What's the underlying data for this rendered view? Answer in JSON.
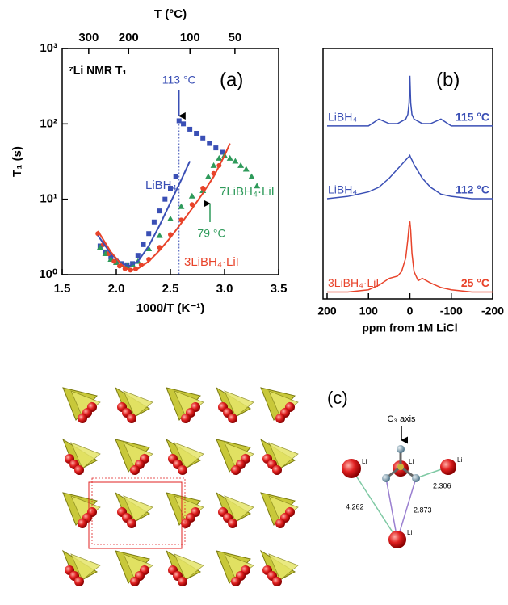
{
  "chart_data": [
    {
      "type": "scatter",
      "panel_label": "(a)",
      "title": "⁷Li NMR T₁",
      "xlabel": "1000/T (K⁻¹)",
      "ylabel": "T₁ (s)",
      "x2label": "T (°C)",
      "xlim": [
        1.5,
        3.5
      ],
      "xticks": [
        1.5,
        {
          "value": 2,
          "label": "2.0"
        },
        2.5,
        {
          "value": 3,
          "label": "3.0"
        },
        3.5
      ],
      "x2ticks": [
        {
          "value": 1.745,
          "label": "300"
        },
        {
          "value": 2.114,
          "label": "200"
        },
        {
          "value": 2.681,
          "label": "100"
        },
        {
          "value": 3.096,
          "label": "50"
        }
      ],
      "ylim": [
        1,
        1000
      ],
      "yscale": "log",
      "yticks": [
        {
          "value": 1,
          "label": "10⁰"
        },
        {
          "value": 10,
          "label": "10¹"
        },
        {
          "value": 100,
          "label": "10²"
        },
        {
          "value": 1000,
          "label": "10³"
        }
      ],
      "series": [
        {
          "name": "LiBH₄",
          "color": "#3a4fb5",
          "marker": "square",
          "x": [
            1.85,
            1.9,
            1.95,
            2.0,
            2.05,
            2.1,
            2.15,
            2.2,
            2.25,
            2.3,
            2.35,
            2.4,
            2.45,
            2.5,
            2.55,
            2.58,
            2.62,
            2.68,
            2.74,
            2.8,
            2.86,
            2.92,
            2.98
          ],
          "values": [
            2.4,
            2.0,
            1.7,
            1.5,
            1.4,
            1.35,
            1.4,
            1.8,
            2.5,
            3.5,
            5,
            7,
            10,
            14,
            20,
            110,
            100,
            85,
            75,
            65,
            55,
            48,
            42
          ]
        },
        {
          "name": "7LiBH₄·LiI",
          "color": "#2e9a5a",
          "marker": "triangle",
          "x": [
            1.85,
            1.9,
            1.95,
            2.0,
            2.05,
            2.1,
            2.15,
            2.2,
            2.3,
            2.4,
            2.5,
            2.6,
            2.7,
            2.8,
            2.85,
            2.9,
            2.95,
            3.0,
            3.05,
            3.1,
            3.15,
            3.2,
            3.25,
            3.3
          ],
          "values": [
            2.3,
            1.9,
            1.6,
            1.45,
            1.35,
            1.3,
            1.35,
            1.5,
            2.2,
            3.3,
            5.5,
            8,
            11,
            13,
            20,
            28,
            35,
            38,
            35,
            32,
            28,
            25,
            20,
            15
          ]
        },
        {
          "name": "3LiBH₄·LiI",
          "color": "#e8432a",
          "marker": "circle",
          "x": [
            1.83,
            1.88,
            1.93,
            1.98,
            2.03,
            2.08,
            2.13,
            2.18,
            2.23,
            2.3,
            2.4,
            2.5,
            2.6,
            2.7,
            2.8,
            2.9,
            2.95
          ],
          "values": [
            3.5,
            2.5,
            1.9,
            1.5,
            1.3,
            1.2,
            1.15,
            1.2,
            1.35,
            1.6,
            2.3,
            3.4,
            5.3,
            8.5,
            14,
            22,
            28
          ]
        },
        {
          "color": "#3a4fb5",
          "marker": "line",
          "x": [
            1.83,
            1.95,
            2.05,
            2.12,
            2.2,
            2.3,
            2.4,
            2.5,
            2.6,
            2.68
          ],
          "values": [
            3.3,
            1.9,
            1.4,
            1.3,
            1.5,
            2.4,
            4.5,
            9,
            18,
            32
          ]
        },
        {
          "color": "#e8432a",
          "marker": "line",
          "x": [
            1.83,
            1.95,
            2.05,
            2.12,
            2.2,
            2.3,
            2.4,
            2.5,
            2.6,
            2.7,
            2.8,
            2.9,
            3.0,
            3.05
          ],
          "values": [
            3.8,
            2.0,
            1.35,
            1.15,
            1.2,
            1.5,
            2.1,
            3.1,
            4.8,
            7.5,
            12,
            20,
            38,
            55
          ]
        }
      ],
      "annotations": [
        "113 °C",
        "79 °C"
      ]
    },
    {
      "type": "line",
      "panel_label": "(b)",
      "xlabel": "ppm from 1M LiCl",
      "xlim": [
        200,
        -200
      ],
      "xticks": [
        200,
        100,
        0,
        -100,
        -200
      ],
      "ylim": [
        0,
        11
      ],
      "x": [
        200,
        150,
        100,
        75,
        50,
        30,
        20,
        10,
        5,
        2,
        0,
        -2,
        -5,
        -10,
        -20,
        -30,
        -50,
        -75,
        -100,
        -150,
        -200
      ],
      "series": [
        {
          "name": "LiBH₄",
          "temperature": "115 °C",
          "color": "#3a4fb5",
          "values": [
            7.6,
            7.6,
            7.6,
            7.9,
            7.7,
            7.7,
            7.8,
            7.9,
            8.1,
            8.6,
            9.8,
            8.6,
            8.1,
            7.9,
            7.8,
            7.7,
            7.7,
            7.9,
            7.6,
            7.6,
            7.6
          ]
        },
        {
          "name": "LiBH₄",
          "temperature": "112 °C",
          "color": "#3a4fb5",
          "values": [
            4.4,
            4.5,
            4.7,
            4.9,
            5.3,
            5.7,
            5.9,
            6.1,
            6.2,
            6.25,
            6.3,
            6.2,
            6.1,
            5.9,
            5.6,
            5.3,
            4.9,
            4.6,
            4.5,
            4.4,
            4.4
          ]
        },
        {
          "name": "3LiBH₄·LiI",
          "temperature": "25 °C",
          "color": "#e8432a",
          "values": [
            0.3,
            0.3,
            0.4,
            0.6,
            0.9,
            1.0,
            1.2,
            1.8,
            2.6,
            3.2,
            3.4,
            3.0,
            2.0,
            1.2,
            0.8,
            0.9,
            0.7,
            0.5,
            0.4,
            0.3,
            0.3
          ]
        }
      ]
    }
  ],
  "diagram": {
    "label": "(c)",
    "axis_label": "C₃ axis",
    "atom_labels": [
      "Li",
      "Li",
      "Li",
      "Li"
    ],
    "distances": [
      4.262,
      2.873,
      2.306
    ]
  }
}
